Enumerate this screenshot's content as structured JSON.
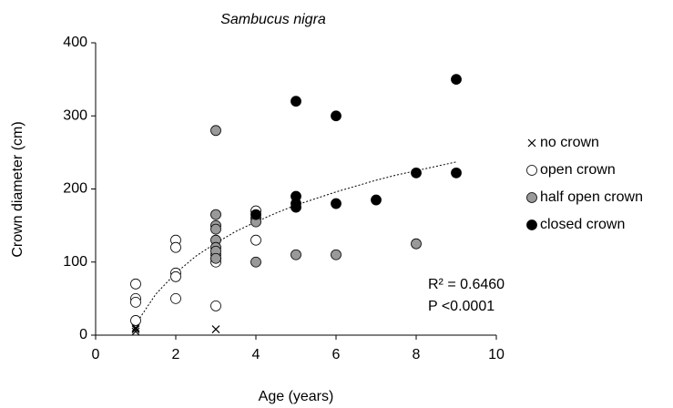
{
  "chart_data": {
    "type": "scatter",
    "title": "Sambucus nigra",
    "x_label": "Age (years)",
    "y_label": "Crown diameter (cm)",
    "xlim": [
      0,
      10
    ],
    "xticks": [
      0,
      2,
      4,
      6,
      8,
      10
    ],
    "ylim": [
      0,
      400
    ],
    "yticks": [
      0,
      100,
      200,
      300,
      400
    ],
    "legend": "right",
    "series": [
      {
        "name": "no crown",
        "marker": "x",
        "color": "#000000",
        "x": [
          1,
          1,
          1,
          3
        ],
        "values": [
          5,
          8,
          10,
          8
        ]
      },
      {
        "name": "open crown",
        "marker": "circle",
        "color": "#ffffff",
        "x": [
          1,
          1,
          1,
          1,
          2,
          2,
          2,
          2,
          2,
          3,
          3,
          3,
          3,
          4,
          4
        ],
        "values": [
          70,
          50,
          45,
          20,
          130,
          120,
          85,
          80,
          50,
          110,
          105,
          100,
          40,
          170,
          130
        ]
      },
      {
        "name": "half open crown",
        "marker": "circle",
        "color": "#999999",
        "x": [
          3,
          3,
          3,
          3,
          3,
          3,
          3,
          3,
          4,
          4,
          4,
          5,
          6,
          8
        ],
        "values": [
          280,
          165,
          150,
          145,
          130,
          120,
          115,
          105,
          160,
          155,
          100,
          110,
          110,
          125
        ]
      },
      {
        "name": "closed crown",
        "marker": "circle",
        "color": "#000000",
        "x": [
          4,
          5,
          5,
          5,
          5,
          6,
          6,
          7,
          8,
          9,
          9
        ],
        "values": [
          165,
          320,
          190,
          180,
          175,
          300,
          180,
          185,
          222,
          350,
          222
        ]
      }
    ],
    "trendline": {
      "x": [
        1,
        1.5,
        2,
        2.5,
        3,
        3.5,
        4,
        4.5,
        5,
        5.5,
        6,
        6.5,
        7,
        7.5,
        8,
        8.5,
        9
      ],
      "values": [
        15,
        56,
        85,
        108,
        126,
        142,
        155,
        167,
        178,
        187,
        196,
        204,
        212,
        219,
        225,
        231,
        237
      ]
    },
    "annotations": [
      "R² = 0.6460",
      "P <0.0001"
    ]
  }
}
